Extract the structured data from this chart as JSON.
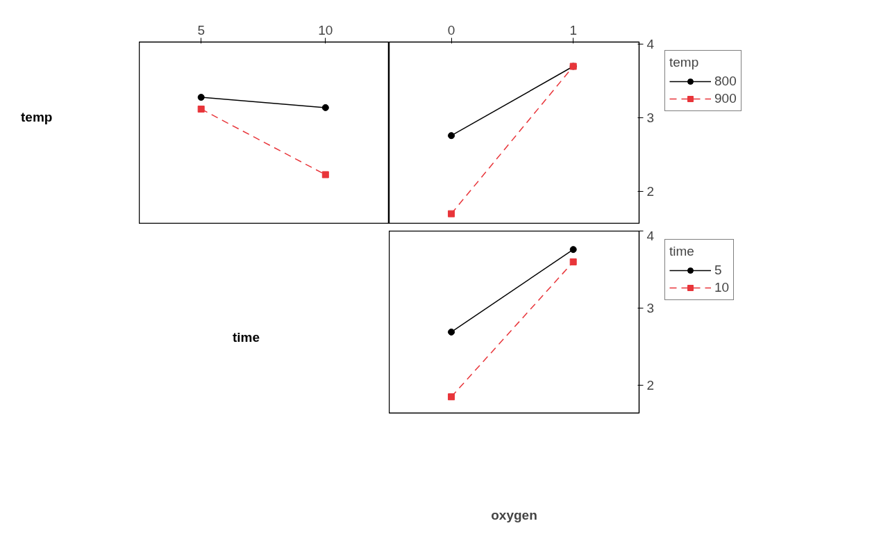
{
  "chart_data": [
    {
      "type": "line",
      "ylabel": "temp",
      "x": [
        5,
        10
      ],
      "xlim": [
        2.51,
        12.56
      ],
      "xticks": [
        5,
        10
      ],
      "ylim": [
        1.56,
        4.03
      ],
      "yticks": [
        2,
        3,
        4
      ],
      "tick_labels": "x",
      "grid": false,
      "legend": false,
      "series": [
        {
          "color": "#000000",
          "values": [
            3.28,
            3.14
          ],
          "marker": "circle",
          "line_style": "solid"
        },
        {
          "color": "#e8353a",
          "values": [
            3.12,
            2.23
          ],
          "marker": "square",
          "line_style": "dashed"
        }
      ]
    },
    {
      "type": "line",
      "x": [
        0,
        1
      ],
      "xlim": [
        -0.51,
        1.54
      ],
      "xticks": [
        0,
        1
      ],
      "ylim": [
        1.56,
        4.03
      ],
      "yticks": [
        2,
        3,
        4
      ],
      "grid": false,
      "legend": "right",
      "legend_title": "temp",
      "series": [
        {
          "name": "800",
          "color": "#000000",
          "values": [
            2.76,
            3.7
          ],
          "marker": "circle",
          "line_style": "solid"
        },
        {
          "name": "900",
          "color": "#e8353a",
          "values": [
            1.7,
            3.7
          ],
          "marker": "square",
          "line_style": "dashed"
        }
      ]
    },
    {
      "type": "line",
      "ylabel": "time",
      "xlabel": "oxygen",
      "x": [
        0,
        1
      ],
      "xlim": [
        -0.51,
        1.54
      ],
      "xticks": [
        0,
        1
      ],
      "ylim": [
        1.64,
        4.0
      ],
      "yticks": [
        2,
        3,
        4
      ],
      "tick_labels": "y",
      "grid": false,
      "legend": "right",
      "legend_title": "time",
      "series": [
        {
          "name": "5",
          "color": "#000000",
          "values": [
            2.69,
            3.76
          ],
          "marker": "circle",
          "line_style": "solid"
        },
        {
          "name": "10",
          "color": "#e8353a",
          "values": [
            1.85,
            3.6
          ],
          "marker": "square",
          "line_style": "dashed"
        }
      ]
    }
  ]
}
